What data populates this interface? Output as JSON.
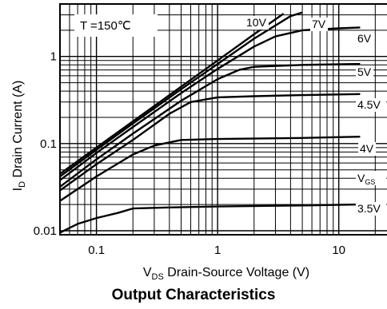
{
  "chart_data": {
    "type": "line",
    "title": "Output Characteristics",
    "condition": "T =150℃",
    "xscale": "log",
    "yscale": "log",
    "xlim": [
      0.05,
      25
    ],
    "ylim": [
      0.009,
      4
    ],
    "grid": true,
    "x_ticks": [
      {
        "value": 0.1,
        "label": "0.1"
      },
      {
        "value": 1,
        "label": "1"
      },
      {
        "value": 10,
        "label": "10"
      }
    ],
    "y_ticks": [
      {
        "value": 0.01,
        "label": "0.01"
      },
      {
        "value": 0.1,
        "label": "0.1"
      },
      {
        "value": 1,
        "label": "1"
      }
    ],
    "xlabel": {
      "symbol": "V",
      "sub": "DS",
      "text": " Drain-Source Voltage (V)"
    },
    "ylabel": {
      "symbol": "I",
      "sub": "D",
      "text": " Drain Current (A)"
    },
    "legend_title": {
      "symbol": "V",
      "sub": "GS"
    },
    "series": [
      {
        "name": "10V",
        "x": [
          0.05,
          0.1,
          0.2,
          0.5,
          1,
          2,
          3.5
        ],
        "y": [
          0.045,
          0.09,
          0.18,
          0.45,
          0.9,
          1.8,
          3.1
        ]
      },
      {
        "name": "7V",
        "x": [
          0.05,
          0.1,
          0.2,
          0.5,
          1,
          2,
          4,
          5
        ],
        "y": [
          0.042,
          0.085,
          0.17,
          0.42,
          0.82,
          1.6,
          2.9,
          3.2
        ]
      },
      {
        "name": "6V",
        "x": [
          0.05,
          0.1,
          0.2,
          0.5,
          1,
          2,
          3,
          5,
          10,
          15
        ],
        "y": [
          0.038,
          0.078,
          0.155,
          0.38,
          0.72,
          1.3,
          1.7,
          2.0,
          2.1,
          2.15
        ]
      },
      {
        "name": "5V",
        "x": [
          0.05,
          0.1,
          0.2,
          0.5,
          1,
          1.5,
          2,
          5,
          15
        ],
        "y": [
          0.032,
          0.066,
          0.13,
          0.31,
          0.55,
          0.7,
          0.76,
          0.8,
          0.82
        ]
      },
      {
        "name": "4.5V",
        "x": [
          0.05,
          0.1,
          0.2,
          0.4,
          0.6,
          1,
          2,
          5,
          15
        ],
        "y": [
          0.029,
          0.058,
          0.11,
          0.22,
          0.3,
          0.34,
          0.35,
          0.36,
          0.37
        ]
      },
      {
        "name": "4V",
        "x": [
          0.05,
          0.1,
          0.2,
          0.3,
          0.5,
          1,
          5,
          15
        ],
        "y": [
          0.022,
          0.042,
          0.075,
          0.095,
          0.11,
          0.113,
          0.116,
          0.12
        ]
      },
      {
        "name": "3.5V",
        "x": [
          0.05,
          0.07,
          0.1,
          0.15,
          0.2,
          0.4,
          1,
          5,
          15
        ],
        "y": [
          0.0095,
          0.012,
          0.014,
          0.016,
          0.018,
          0.0185,
          0.019,
          0.0195,
          0.02
        ]
      }
    ]
  }
}
